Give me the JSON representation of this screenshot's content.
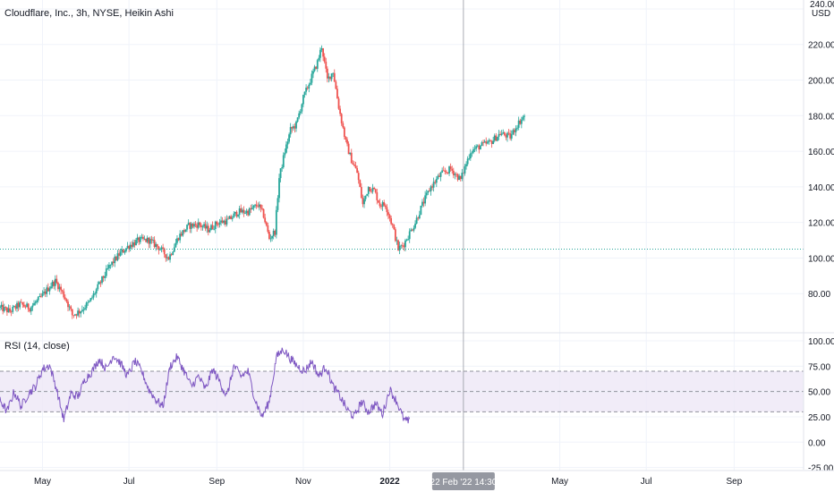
{
  "header": {
    "title": "Cloudflare, Inc., 3h, NYSE, Heikin Ashi"
  },
  "price_axis": {
    "top_label": "240.00",
    "currency": "USD",
    "tick_labels": [
      "240.00",
      "220.00",
      "200.00",
      "180.00",
      "160.00",
      "140.00",
      "120.00",
      "100.00",
      "80.00"
    ]
  },
  "rsi_panel": {
    "label": "RSI (14, close)",
    "tick_labels": [
      "100.00",
      "75.00",
      "50.00",
      "25.00",
      "0.00",
      "-25.00"
    ]
  },
  "time_axis": {
    "tick_labels": [
      "May",
      "Jul",
      "Sep",
      "Nov",
      "2022",
      "May",
      "Jul",
      "Sep"
    ],
    "crosshair_label": "22 Feb '22  14:30"
  },
  "colors": {
    "up": "#26a69a",
    "down": "#ef5350",
    "rsi_line": "#7e57c2",
    "rsi_band": "#ede7f6",
    "grid": "#f0f3fa",
    "text": "#131722",
    "badge": "#9598a1",
    "baseline": "#26a69a",
    "crosshair": "#9598a1"
  },
  "chart_data": [
    {
      "type": "candlestick",
      "title": "Cloudflare, Inc., 3h, NYSE, Heikin Ashi",
      "ylabel": "USD",
      "ylim": [
        58,
        245
      ],
      "x_range": [
        "2021-04-01",
        "2022-10-20"
      ],
      "x_tick_labels": [
        "May",
        "Jul",
        "Sep",
        "Nov",
        "2022",
        "May",
        "Jul",
        "Sep"
      ],
      "y_ticks": [
        80,
        100,
        120,
        140,
        160,
        180,
        200,
        220,
        240
      ],
      "grid": true,
      "baseline_price": 105,
      "crosshair_date": "2022-02-22",
      "series": [
        {
          "name": "",
          "points": [
            [
              "2021-04-01",
              72
            ],
            [
              "2021-04-08",
              70
            ],
            [
              "2021-04-15",
              74
            ],
            [
              "2021-04-22",
              72
            ],
            [
              "2021-04-29",
              77
            ],
            [
              "2021-05-06",
              84
            ],
            [
              "2021-05-10",
              87
            ],
            [
              "2021-05-14",
              82
            ],
            [
              "2021-05-18",
              76
            ],
            [
              "2021-05-22",
              68
            ],
            [
              "2021-05-27",
              70
            ],
            [
              "2021-06-03",
              75
            ],
            [
              "2021-06-10",
              85
            ],
            [
              "2021-06-17",
              95
            ],
            [
              "2021-06-24",
              102
            ],
            [
              "2021-07-01",
              107
            ],
            [
              "2021-07-08",
              110
            ],
            [
              "2021-07-15",
              110
            ],
            [
              "2021-07-22",
              106
            ],
            [
              "2021-07-29",
              100
            ],
            [
              "2021-08-05",
              112
            ],
            [
              "2021-08-12",
              118
            ],
            [
              "2021-08-19",
              119
            ],
            [
              "2021-08-26",
              116
            ],
            [
              "2021-09-02",
              120
            ],
            [
              "2021-09-09",
              121
            ],
            [
              "2021-09-16",
              126
            ],
            [
              "2021-09-23",
              126
            ],
            [
              "2021-09-30",
              130
            ],
            [
              "2021-10-04",
              124
            ],
            [
              "2021-10-08",
              111
            ],
            [
              "2021-10-12",
              115
            ],
            [
              "2021-10-15",
              145
            ],
            [
              "2021-10-19",
              160
            ],
            [
              "2021-10-23",
              172
            ],
            [
              "2021-10-27",
              175
            ],
            [
              "2021-11-01",
              190
            ],
            [
              "2021-11-06",
              200
            ],
            [
              "2021-11-11",
              210
            ],
            [
              "2021-11-14",
              219
            ],
            [
              "2021-11-18",
              200
            ],
            [
              "2021-11-22",
              205
            ],
            [
              "2021-11-26",
              185
            ],
            [
              "2021-12-01",
              165
            ],
            [
              "2021-12-05",
              155
            ],
            [
              "2021-12-09",
              148
            ],
            [
              "2021-12-13",
              130
            ],
            [
              "2021-12-17",
              140
            ],
            [
              "2021-12-21",
              138
            ],
            [
              "2021-12-25",
              130
            ],
            [
              "2021-12-29",
              130
            ],
            [
              "2022-01-03",
              118
            ],
            [
              "2022-01-07",
              105
            ],
            [
              "2022-01-11",
              108
            ],
            [
              "2022-01-15",
              114
            ],
            [
              "2022-01-19",
              120
            ],
            [
              "2022-01-24",
              130
            ],
            [
              "2022-01-30",
              140
            ],
            [
              "2022-02-06",
              147
            ],
            [
              "2022-02-13",
              150
            ],
            [
              "2022-02-20",
              144
            ],
            [
              "2022-02-27",
              160
            ],
            [
              "2022-03-06",
              163
            ],
            [
              "2022-03-13",
              165
            ],
            [
              "2022-03-20",
              170
            ],
            [
              "2022-03-27",
              168
            ],
            [
              "2022-04-01",
              175
            ],
            [
              "2022-04-06",
              180
            ]
          ]
        }
      ]
    },
    {
      "type": "line",
      "title": "RSI (14, close)",
      "ylim": [
        -28,
        108
      ],
      "y_ticks": [
        -25,
        0,
        25,
        50,
        75,
        100
      ],
      "bands": {
        "upper": 70,
        "middle": 50,
        "lower": 30
      },
      "series": [
        {
          "name": "",
          "points": [
            [
              "2021-04-01",
              42
            ],
            [
              "2021-04-06",
              30
            ],
            [
              "2021-04-11",
              50
            ],
            [
              "2021-04-16",
              35
            ],
            [
              "2021-04-21",
              48
            ],
            [
              "2021-04-26",
              55
            ],
            [
              "2021-05-01",
              72
            ],
            [
              "2021-05-06",
              76
            ],
            [
              "2021-05-11",
              52
            ],
            [
              "2021-05-16",
              22
            ],
            [
              "2021-05-21",
              48
            ],
            [
              "2021-05-26",
              45
            ],
            [
              "2021-05-31",
              62
            ],
            [
              "2021-06-05",
              70
            ],
            [
              "2021-06-10",
              82
            ],
            [
              "2021-06-15",
              72
            ],
            [
              "2021-06-20",
              86
            ],
            [
              "2021-06-25",
              78
            ],
            [
              "2021-06-30",
              65
            ],
            [
              "2021-07-05",
              80
            ],
            [
              "2021-07-10",
              70
            ],
            [
              "2021-07-15",
              52
            ],
            [
              "2021-07-20",
              42
            ],
            [
              "2021-07-25",
              35
            ],
            [
              "2021-07-30",
              75
            ],
            [
              "2021-08-04",
              84
            ],
            [
              "2021-08-09",
              70
            ],
            [
              "2021-08-14",
              55
            ],
            [
              "2021-08-19",
              65
            ],
            [
              "2021-08-24",
              52
            ],
            [
              "2021-08-29",
              72
            ],
            [
              "2021-09-03",
              60
            ],
            [
              "2021-09-08",
              45
            ],
            [
              "2021-09-13",
              75
            ],
            [
              "2021-09-18",
              65
            ],
            [
              "2021-09-23",
              70
            ],
            [
              "2021-09-28",
              42
            ],
            [
              "2021-10-03",
              25
            ],
            [
              "2021-10-08",
              40
            ],
            [
              "2021-10-13",
              84
            ],
            [
              "2021-10-18",
              92
            ],
            [
              "2021-10-23",
              82
            ],
            [
              "2021-10-28",
              75
            ],
            [
              "2021-11-02",
              70
            ],
            [
              "2021-11-07",
              80
            ],
            [
              "2021-11-12",
              65
            ],
            [
              "2021-11-17",
              75
            ],
            [
              "2021-11-22",
              55
            ],
            [
              "2021-11-27",
              45
            ],
            [
              "2021-12-02",
              32
            ],
            [
              "2021-12-07",
              25
            ],
            [
              "2021-12-12",
              40
            ],
            [
              "2021-12-17",
              30
            ],
            [
              "2021-12-22",
              38
            ],
            [
              "2021-12-27",
              28
            ],
            [
              "2022-01-01",
              52
            ],
            [
              "2022-01-06",
              40
            ],
            [
              "2022-01-11",
              22
            ],
            [
              "2022-01-15",
              20
            ]
          ]
        }
      ]
    }
  ]
}
